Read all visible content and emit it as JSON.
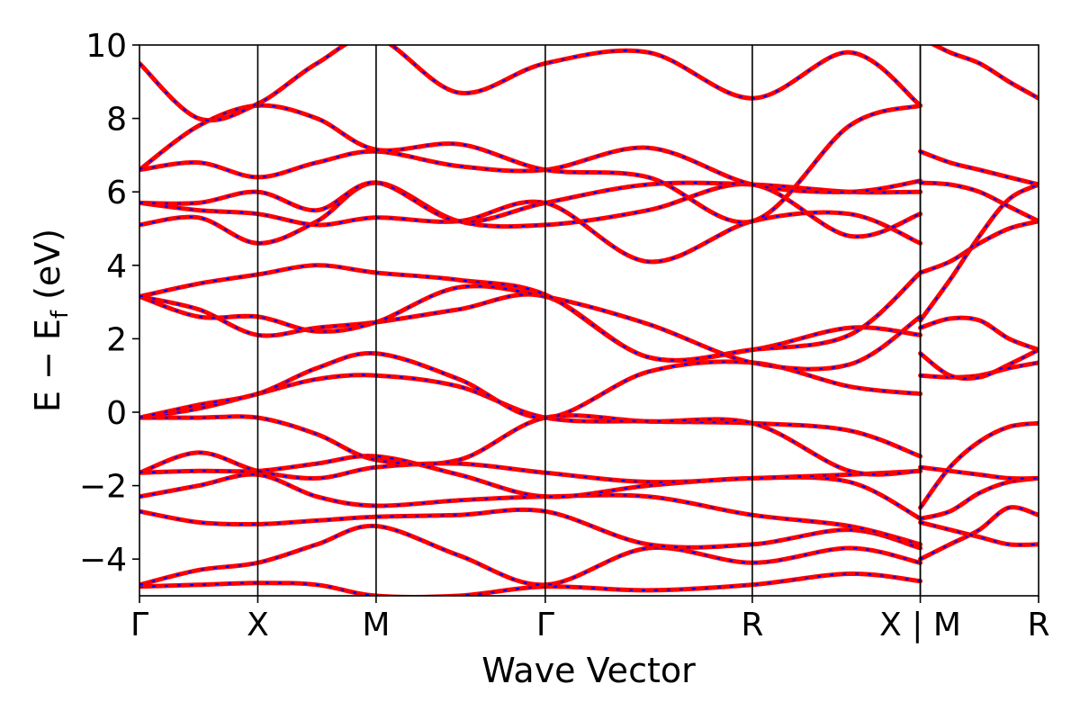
{
  "chart_data": {
    "type": "line",
    "title": "",
    "xlabel": "Wave Vector",
    "ylabel": {
      "main": "E − E",
      "sub": "f",
      "unit": " (eV)"
    },
    "ylim": [
      -5,
      10
    ],
    "yticks": [
      -4,
      -2,
      0,
      2,
      4,
      6,
      8,
      10
    ],
    "ytick_labels": [
      "−4",
      "−2",
      "0",
      "2",
      "4",
      "6",
      "8",
      "10"
    ],
    "grid": false,
    "legend": "none",
    "colors": {
      "series_a": "#ff0000",
      "series_b": "#0000ff",
      "kpath_line": "#000000"
    },
    "kpath": {
      "positions": [
        0,
        1,
        2,
        3.43,
        5.18,
        6.6,
        6.6,
        7.6
      ],
      "labels": [
        "Γ",
        "X",
        "M",
        "Γ",
        "R",
        "X | M",
        "R"
      ],
      "label_positions": [
        0,
        1,
        2,
        3.43,
        5.18,
        6.6,
        7.6
      ],
      "x_range": [
        0,
        7.6
      ]
    },
    "series": [
      {
        "name": "",
        "style": "solid-red"
      },
      {
        "name": "",
        "style": "dashed-blue"
      }
    ],
    "bands": [
      {
        "k": [
          0,
          0.5,
          1,
          1.5,
          2,
          2.7,
          3.43,
          4.3,
          5.18,
          6,
          6.6
        ],
        "e": [
          -4.75,
          -4.7,
          -4.65,
          -4.7,
          -5.0,
          -5.0,
          -4.75,
          -4.85,
          -4.7,
          -4.4,
          -4.6
        ]
      },
      {
        "k": [
          0,
          0.5,
          1,
          1.5,
          2,
          2.7,
          3.43,
          4.3,
          5.18,
          6,
          6.6
        ],
        "e": [
          -4.7,
          -4.3,
          -4.1,
          -3.6,
          -3.1,
          -3.9,
          -4.7,
          -3.7,
          -4.1,
          -3.7,
          -4.1
        ]
      },
      {
        "k": [
          0,
          0.5,
          1,
          1.5,
          2,
          2.7,
          3.43,
          4.3,
          5.18,
          6,
          6.6
        ],
        "e": [
          -2.7,
          -3.0,
          -3.05,
          -2.95,
          -2.85,
          -2.8,
          -2.7,
          -3.6,
          -3.6,
          -3.2,
          -3.7
        ]
      },
      {
        "k": [
          0,
          0.5,
          1,
          1.5,
          2,
          2.7,
          3.43,
          4.3,
          5.18,
          6,
          6.6
        ],
        "e": [
          -2.3,
          -2.0,
          -1.7,
          -2.3,
          -2.55,
          -2.4,
          -2.3,
          -2.3,
          -2.8,
          -3.1,
          -3.6
        ]
      },
      {
        "k": [
          0,
          0.5,
          1,
          1.5,
          2,
          2.7,
          3.43,
          4.3,
          5.18,
          6,
          6.6
        ],
        "e": [
          -1.65,
          -1.6,
          -1.6,
          -1.4,
          -1.2,
          -1.7,
          -2.3,
          -2.0,
          -1.8,
          -1.9,
          -2.9
        ]
      },
      {
        "k": [
          0,
          0.5,
          1,
          1.5,
          2,
          2.7,
          3.43,
          4.3,
          5.18,
          6,
          6.6
        ],
        "e": [
          -1.65,
          -1.1,
          -1.6,
          -1.8,
          -1.5,
          -1.4,
          -1.65,
          -1.9,
          -1.8,
          -1.7,
          -1.6
        ]
      },
      {
        "k": [
          0,
          0.5,
          1,
          1.5,
          2,
          2.7,
          3.43,
          4.3,
          5.18,
          6,
          6.6
        ],
        "e": [
          -0.15,
          -0.15,
          -0.15,
          -0.6,
          -1.3,
          -1.3,
          -0.15,
          -0.25,
          -0.3,
          -0.5,
          -1.2
        ]
      },
      {
        "k": [
          0,
          0.5,
          1,
          1.5,
          2,
          2.7,
          3.43,
          4.3,
          5.18,
          6,
          6.6
        ],
        "e": [
          -0.15,
          0.1,
          0.5,
          0.9,
          1.0,
          0.7,
          -0.15,
          -0.25,
          -0.3,
          -1.6,
          -1.6
        ]
      },
      {
        "k": [
          0,
          0.5,
          1,
          1.5,
          2,
          2.7,
          3.43,
          4.3,
          5.18,
          6,
          6.6
        ],
        "e": [
          -0.15,
          0.2,
          0.5,
          1.2,
          1.6,
          0.9,
          -0.15,
          1.1,
          1.35,
          0.7,
          0.5
        ]
      },
      {
        "k": [
          0,
          0.5,
          1,
          1.5,
          2,
          2.7,
          3.43,
          4.3,
          5.18,
          6,
          6.6
        ],
        "e": [
          3.15,
          2.8,
          2.1,
          2.3,
          2.45,
          2.8,
          3.15,
          1.5,
          1.7,
          2.3,
          2.1
        ]
      },
      {
        "k": [
          0,
          0.5,
          1,
          1.5,
          2,
          2.7,
          3.43,
          4.3,
          5.18,
          6,
          6.6
        ],
        "e": [
          3.15,
          2.6,
          2.6,
          2.2,
          2.45,
          3.4,
          3.15,
          2.4,
          1.35,
          1.3,
          2.6
        ]
      },
      {
        "k": [
          0,
          0.5,
          1,
          1.5,
          2,
          2.7,
          3.43,
          4.3,
          5.18,
          6,
          6.6
        ],
        "e": [
          3.15,
          3.5,
          3.75,
          4.0,
          3.8,
          3.6,
          3.2,
          1.5,
          1.7,
          2.1,
          3.8
        ]
      },
      {
        "k": [
          0,
          0.5,
          1,
          1.5,
          2,
          2.7,
          3.43,
          4.3,
          5.18,
          6,
          6.6
        ],
        "e": [
          5.7,
          5.5,
          5.4,
          5.1,
          5.3,
          5.2,
          5.7,
          4.1,
          5.2,
          5.4,
          4.6
        ]
      },
      {
        "k": [
          0,
          0.5,
          1,
          1.5,
          2,
          2.7,
          3.43,
          4.3,
          5.18,
          6,
          6.6
        ],
        "e": [
          5.1,
          5.3,
          4.6,
          5.2,
          6.25,
          5.2,
          5.1,
          5.5,
          6.2,
          4.8,
          5.4
        ]
      },
      {
        "k": [
          0,
          0.5,
          1,
          1.5,
          2,
          2.7,
          3.43,
          4.3,
          5.18,
          6,
          6.6
        ],
        "e": [
          5.7,
          5.7,
          6.0,
          5.5,
          6.25,
          5.2,
          5.7,
          6.2,
          6.2,
          6.0,
          6.0
        ]
      },
      {
        "k": [
          0,
          0.5,
          1,
          1.5,
          2,
          2.7,
          3.43,
          4.3,
          5.18,
          6,
          6.6
        ],
        "e": [
          6.6,
          6.8,
          6.4,
          6.8,
          7.1,
          6.7,
          6.6,
          7.2,
          6.2,
          6.0,
          6.3
        ]
      },
      {
        "k": [
          0,
          0.5,
          1,
          1.5,
          2,
          2.7,
          3.43,
          4.3,
          5.18,
          6,
          6.6
        ],
        "e": [
          6.6,
          7.8,
          8.35,
          8.0,
          7.15,
          7.3,
          6.6,
          6.4,
          5.2,
          7.8,
          8.35
        ]
      },
      {
        "k": [
          0,
          0.5,
          1,
          1.5,
          2,
          2.7,
          3.43,
          4.3,
          5.18,
          6,
          6.6
        ],
        "e": [
          9.5,
          8.0,
          8.4,
          9.5,
          10.2,
          8.7,
          9.5,
          9.8,
          8.55,
          9.8,
          8.35
        ]
      },
      {
        "k": [
          6.6,
          6.85,
          7.1,
          7.35,
          7.6
        ],
        "e": [
          -4.0,
          -3.6,
          -3.2,
          -2.6,
          -2.8
        ]
      },
      {
        "k": [
          6.6,
          6.85,
          7.1,
          7.35,
          7.6
        ],
        "e": [
          -3.0,
          -3.2,
          -3.4,
          -3.6,
          -3.6
        ]
      },
      {
        "k": [
          6.6,
          6.85,
          7.1,
          7.35,
          7.6
        ],
        "e": [
          -2.9,
          -2.7,
          -2.2,
          -1.9,
          -1.8
        ]
      },
      {
        "k": [
          6.6,
          6.85,
          7.1,
          7.35,
          7.6
        ],
        "e": [
          -2.6,
          -1.5,
          -0.8,
          -0.4,
          -0.3
        ]
      },
      {
        "k": [
          6.6,
          6.85,
          7.1,
          7.35,
          7.6
        ],
        "e": [
          -1.5,
          -1.6,
          -1.7,
          -1.8,
          -1.8
        ]
      },
      {
        "k": [
          6.6,
          6.85,
          7.1,
          7.35,
          7.6
        ],
        "e": [
          1.0,
          0.95,
          1.0,
          1.2,
          1.35
        ]
      },
      {
        "k": [
          6.6,
          6.85,
          7.1,
          7.35,
          7.6
        ],
        "e": [
          1.6,
          1.0,
          0.95,
          1.3,
          1.7
        ]
      },
      {
        "k": [
          6.6,
          6.85,
          7.1,
          7.35,
          7.6
        ],
        "e": [
          2.3,
          2.55,
          2.5,
          2.0,
          1.7
        ]
      },
      {
        "k": [
          6.6,
          6.85,
          7.1,
          7.35,
          7.6
        ],
        "e": [
          3.8,
          4.1,
          4.6,
          5.0,
          5.2
        ]
      },
      {
        "k": [
          6.6,
          6.85,
          7.1,
          7.35,
          7.6
        ],
        "e": [
          2.5,
          3.6,
          4.8,
          5.8,
          6.2
        ]
      },
      {
        "k": [
          6.6,
          6.85,
          7.1,
          7.35,
          7.6
        ],
        "e": [
          6.25,
          6.2,
          6.0,
          5.6,
          5.2
        ]
      },
      {
        "k": [
          6.6,
          6.85,
          7.1,
          7.35,
          7.6
        ],
        "e": [
          7.1,
          6.8,
          6.6,
          6.4,
          6.2
        ]
      },
      {
        "k": [
          6.6,
          6.85,
          7.1,
          7.35,
          7.6
        ],
        "e": [
          10.2,
          9.8,
          9.5,
          9.0,
          8.55
        ]
      }
    ]
  }
}
